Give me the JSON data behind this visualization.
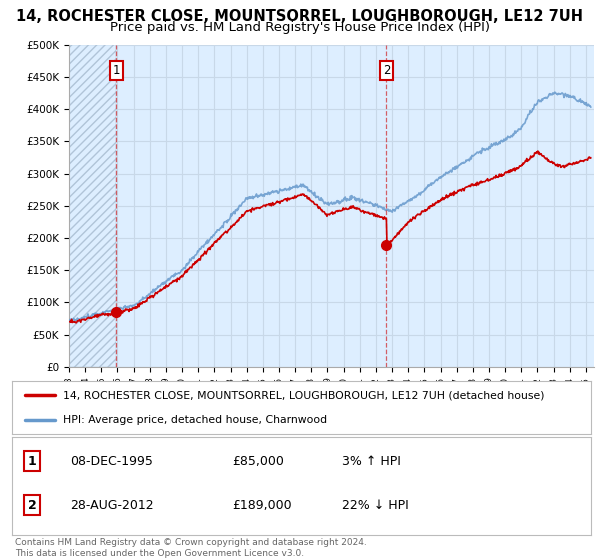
{
  "title": "14, ROCHESTER CLOSE, MOUNTSORREL, LOUGHBOROUGH, LE12 7UH",
  "subtitle": "Price paid vs. HM Land Registry's House Price Index (HPI)",
  "ylabel_values": [
    "£0",
    "£50K",
    "£100K",
    "£150K",
    "£200K",
    "£250K",
    "£300K",
    "£350K",
    "£400K",
    "£450K",
    "£500K"
  ],
  "ylim": [
    0,
    500000
  ],
  "yticks": [
    0,
    50000,
    100000,
    150000,
    200000,
    250000,
    300000,
    350000,
    400000,
    450000,
    500000
  ],
  "xmin": 1993.0,
  "xmax": 2025.5,
  "xticks": [
    1993,
    1994,
    1995,
    1996,
    1997,
    1998,
    1999,
    2000,
    2001,
    2002,
    2003,
    2004,
    2005,
    2006,
    2007,
    2008,
    2009,
    2010,
    2011,
    2012,
    2013,
    2014,
    2015,
    2016,
    2017,
    2018,
    2019,
    2020,
    2021,
    2022,
    2023,
    2024,
    2025
  ],
  "hpi_color": "#6699cc",
  "price_color": "#cc0000",
  "marker_color": "#cc0000",
  "grid_color": "#c8d8e8",
  "bg_color": "#ddeeff",
  "sale1_date": 1995.93,
  "sale1_price": 85000,
  "sale2_date": 2012.65,
  "sale2_price": 189000,
  "legend_label_red": "14, ROCHESTER CLOSE, MOUNTSORREL, LOUGHBOROUGH, LE12 7UH (detached house)",
  "legend_label_blue": "HPI: Average price, detached house, Charnwood",
  "table_row1_num": "1",
  "table_row1_date": "08-DEC-1995",
  "table_row1_price": "£85,000",
  "table_row1_hpi": "3% ↑ HPI",
  "table_row2_num": "2",
  "table_row2_date": "28-AUG-2012",
  "table_row2_price": "£189,000",
  "table_row2_hpi": "22% ↓ HPI",
  "footer": "Contains HM Land Registry data © Crown copyright and database right 2024.\nThis data is licensed under the Open Government Licence v3.0."
}
